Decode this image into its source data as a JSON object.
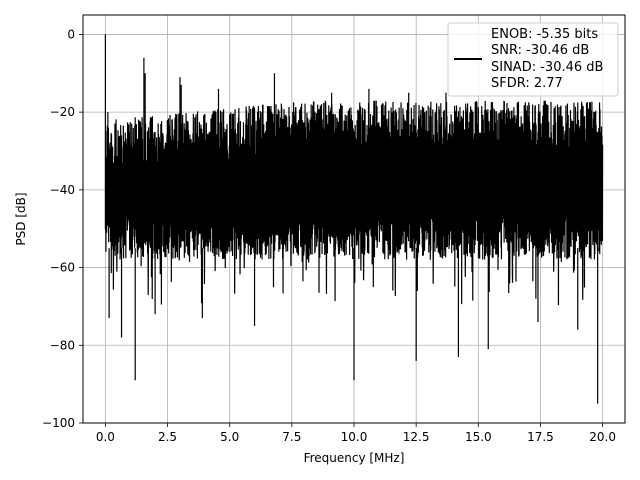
{
  "chart_data": {
    "type": "line",
    "title": "",
    "xlabel": "Frequency [MHz]",
    "ylabel": "PSD [dB]",
    "xlim": [
      -0.9,
      20.9
    ],
    "ylim": [
      -100,
      5
    ],
    "xticks": [
      0.0,
      2.5,
      5.0,
      7.5,
      10.0,
      12.5,
      15.0,
      17.5,
      20.0
    ],
    "xtick_labels": [
      "0.0",
      "2.5",
      "5.0",
      "7.5",
      "10.0",
      "12.5",
      "15.0",
      "17.5",
      "20.0"
    ],
    "yticks": [
      0,
      -20,
      -40,
      -60,
      -80,
      -100
    ],
    "ytick_labels": [
      "0",
      "−20",
      "−40",
      "−60",
      "−80",
      "−100"
    ],
    "grid": true,
    "series_color": "#000000",
    "legend": {
      "placement": "top-right",
      "entries": [
        "ENOB: -5.35 bits",
        "SNR: -30.46 dB",
        "SINAD: -30.46 dB",
        "SFDR: 2.77"
      ]
    },
    "spectrum": {
      "x_range": [
        0.0,
        20.0
      ],
      "noise_ceiling_start": -22,
      "noise_ceiling_end": -17,
      "noise_floor_typical": -58,
      "dc_peak": [
        0.0,
        0.0
      ],
      "spurs": [
        [
          0.1,
          -20
        ],
        [
          1.55,
          -6
        ],
        [
          1.6,
          -10
        ],
        [
          3.0,
          -11
        ],
        [
          3.05,
          -13
        ],
        [
          4.55,
          -14
        ],
        [
          6.8,
          -10
        ],
        [
          9.1,
          -15
        ],
        [
          10.6,
          -14
        ],
        [
          12.2,
          -15
        ],
        [
          13.7,
          -15
        ]
      ],
      "notches": [
        [
          0.15,
          -73
        ],
        [
          0.65,
          -78
        ],
        [
          1.2,
          -89
        ],
        [
          2.0,
          -72
        ],
        [
          3.9,
          -73
        ],
        [
          6.0,
          -75
        ],
        [
          10.0,
          -89
        ],
        [
          12.5,
          -84
        ],
        [
          14.2,
          -83
        ],
        [
          15.4,
          -81
        ],
        [
          17.4,
          -74
        ],
        [
          19.0,
          -76
        ],
        [
          19.8,
          -95
        ]
      ]
    }
  }
}
